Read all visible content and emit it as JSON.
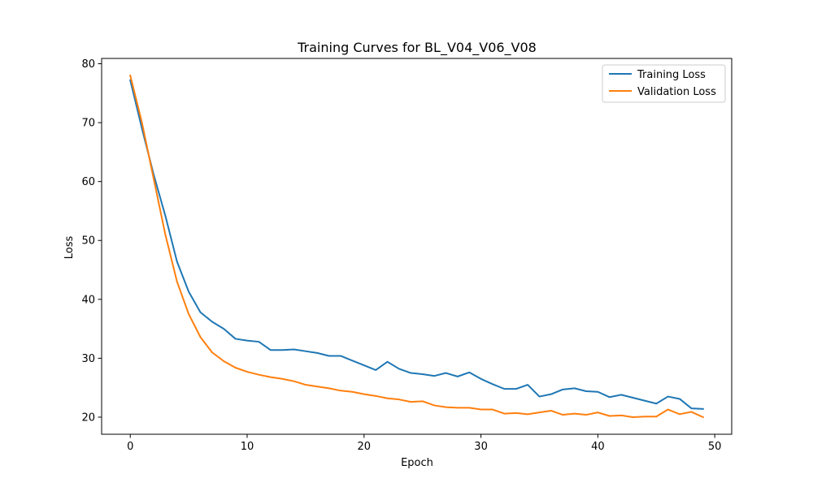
{
  "chart_data": {
    "type": "line",
    "title": "Training Curves for BL_V04_V06_V08",
    "xlabel": "Epoch",
    "ylabel": "Loss",
    "xlim": [
      -2.45,
      51.45
    ],
    "ylim": [
      17.1,
      80.9
    ],
    "xticks": [
      0,
      10,
      20,
      30,
      40,
      50
    ],
    "yticks": [
      20,
      30,
      40,
      50,
      60,
      70,
      80
    ],
    "grid": false,
    "legend_position": "top-right",
    "x": [
      0,
      1,
      2,
      3,
      4,
      5,
      6,
      7,
      8,
      9,
      10,
      11,
      12,
      13,
      14,
      15,
      16,
      17,
      18,
      19,
      20,
      21,
      22,
      23,
      24,
      25,
      26,
      27,
      28,
      29,
      30,
      31,
      32,
      33,
      34,
      35,
      36,
      37,
      38,
      39,
      40,
      41,
      42,
      43,
      44,
      45,
      46,
      47,
      48,
      49
    ],
    "series": [
      {
        "name": "Training Loss",
        "color": "#1f77b4",
        "values": [
          77.2,
          69.0,
          61.2,
          54.2,
          46.4,
          41.3,
          37.8,
          36.2,
          35.0,
          33.3,
          33.0,
          32.8,
          31.4,
          31.4,
          31.5,
          31.2,
          30.9,
          30.4,
          30.4,
          29.6,
          28.8,
          28.0,
          29.4,
          28.2,
          27.5,
          27.3,
          27.0,
          27.5,
          26.9,
          27.6,
          26.5,
          25.6,
          24.8,
          24.8,
          25.5,
          23.5,
          23.9,
          24.7,
          24.9,
          24.4,
          24.3,
          23.4,
          23.8,
          23.3,
          22.8,
          22.3,
          23.5,
          23.1,
          21.5,
          21.4
        ]
      },
      {
        "name": "Validation Loss",
        "color": "#ff7f0e",
        "values": [
          78.0,
          70.0,
          60.5,
          51.0,
          43.0,
          37.5,
          33.6,
          31.0,
          29.5,
          28.4,
          27.7,
          27.2,
          26.8,
          26.5,
          26.1,
          25.5,
          25.2,
          24.9,
          24.5,
          24.3,
          23.9,
          23.6,
          23.2,
          23.0,
          22.6,
          22.7,
          22.0,
          21.7,
          21.6,
          21.6,
          21.3,
          21.3,
          20.6,
          20.7,
          20.5,
          20.8,
          21.1,
          20.4,
          20.6,
          20.4,
          20.8,
          20.2,
          20.3,
          20.0,
          20.1,
          20.1,
          21.3,
          20.5,
          20.9,
          20.0
        ]
      }
    ]
  }
}
